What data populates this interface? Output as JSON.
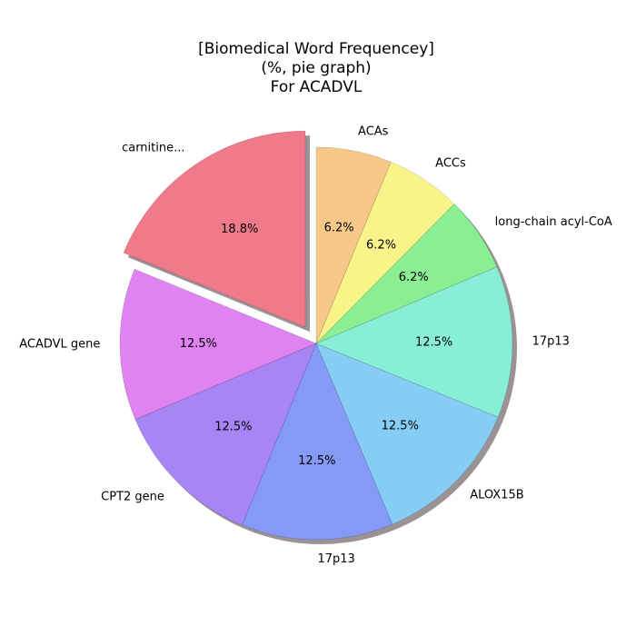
{
  "chart_data": {
    "type": "pie",
    "title_lines": [
      "[Biomedical Word Frequencey]",
      "(%, pie graph)",
      "For ACADVL"
    ],
    "slices": [
      {
        "label": "carnitine...",
        "value": 18.8,
        "pct_label": "18.8%",
        "color": "#f07a8a",
        "exploded": true
      },
      {
        "label": "ACADVL gene",
        "value": 12.5,
        "pct_label": "12.5%",
        "color": "#df82f2"
      },
      {
        "label": "CPT2 gene",
        "value": 12.5,
        "pct_label": "12.5%",
        "color": "#a885f5"
      },
      {
        "label": "17p13",
        "value": 12.5,
        "pct_label": "12.5%",
        "color": "#8599f7"
      },
      {
        "label": "ALOX15B",
        "value": 12.5,
        "pct_label": "12.5%",
        "color": "#86cdf6"
      },
      {
        "label": "17p13",
        "value": 12.5,
        "pct_label": "12.5%",
        "color": "#88eed8"
      },
      {
        "label": "long-chain acyl-CoA",
        "value": 6.2,
        "pct_label": "6.2%",
        "color": "#8aee92"
      },
      {
        "label": "ACCs",
        "value": 6.2,
        "pct_label": "6.2%",
        "color": "#f9f489"
      },
      {
        "label": "ACAs",
        "value": 6.2,
        "pct_label": "6.2%",
        "color": "#f8c888"
      }
    ],
    "start_angle_deg": 90,
    "direction": "counterclockwise",
    "shadow": true
  }
}
